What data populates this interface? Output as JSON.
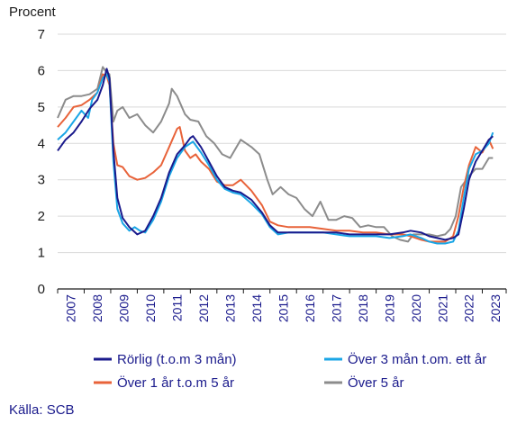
{
  "chart_data": {
    "type": "line",
    "ylabel": "Procent",
    "ylim": [
      0,
      7
    ],
    "yticks": [
      0,
      1,
      2,
      3,
      4,
      5,
      6,
      7
    ],
    "xlim": [
      2007.0,
      2023.9
    ],
    "xticks": [
      "2007",
      "2008",
      "2009",
      "2010",
      "2011",
      "2012",
      "2013",
      "2014",
      "2015",
      "2016",
      "2017",
      "2018",
      "2019",
      "2020",
      "2021",
      "2022",
      "2023"
    ],
    "grid": "horizontal",
    "legend_position": "bottom",
    "source": "Källa: SCB",
    "series": [
      {
        "name": "Rörlig (t.o.m 3 mån)",
        "color": "#1a1a8c",
        "points": [
          [
            2007.0,
            3.8
          ],
          [
            2007.3,
            4.1
          ],
          [
            2007.6,
            4.3
          ],
          [
            2007.9,
            4.6
          ],
          [
            2008.2,
            4.95
          ],
          [
            2008.5,
            5.2
          ],
          [
            2008.7,
            5.6
          ],
          [
            2008.85,
            6.05
          ],
          [
            2008.95,
            5.8
          ],
          [
            2009.1,
            3.8
          ],
          [
            2009.25,
            2.5
          ],
          [
            2009.45,
            1.95
          ],
          [
            2009.7,
            1.7
          ],
          [
            2010.0,
            1.5
          ],
          [
            2010.3,
            1.6
          ],
          [
            2010.6,
            2.0
          ],
          [
            2010.9,
            2.5
          ],
          [
            2011.2,
            3.2
          ],
          [
            2011.5,
            3.7
          ],
          [
            2011.8,
            3.95
          ],
          [
            2012.0,
            4.15
          ],
          [
            2012.1,
            4.2
          ],
          [
            2012.4,
            3.9
          ],
          [
            2012.7,
            3.5
          ],
          [
            2013.0,
            3.1
          ],
          [
            2013.3,
            2.8
          ],
          [
            2013.6,
            2.7
          ],
          [
            2013.9,
            2.65
          ],
          [
            2014.3,
            2.45
          ],
          [
            2014.7,
            2.1
          ],
          [
            2015.0,
            1.75
          ],
          [
            2015.3,
            1.55
          ],
          [
            2015.7,
            1.55
          ],
          [
            2016.0,
            1.55
          ],
          [
            2016.5,
            1.55
          ],
          [
            2017.0,
            1.55
          ],
          [
            2017.5,
            1.55
          ],
          [
            2018.0,
            1.5
          ],
          [
            2018.5,
            1.5
          ],
          [
            2019.0,
            1.5
          ],
          [
            2019.5,
            1.5
          ],
          [
            2020.0,
            1.55
          ],
          [
            2020.3,
            1.6
          ],
          [
            2020.7,
            1.55
          ],
          [
            2021.0,
            1.45
          ],
          [
            2021.3,
            1.4
          ],
          [
            2021.6,
            1.35
          ],
          [
            2021.9,
            1.4
          ],
          [
            2022.1,
            1.5
          ],
          [
            2022.3,
            2.2
          ],
          [
            2022.5,
            3.0
          ],
          [
            2022.75,
            3.5
          ],
          [
            2023.0,
            3.8
          ],
          [
            2023.25,
            4.1
          ],
          [
            2023.4,
            4.2
          ]
        ]
      },
      {
        "name": "Över 3 mån t.om. ett år",
        "color": "#1aa6e6",
        "points": [
          [
            2007.0,
            4.1
          ],
          [
            2007.3,
            4.3
          ],
          [
            2007.6,
            4.6
          ],
          [
            2007.9,
            4.9
          ],
          [
            2008.15,
            4.7
          ],
          [
            2008.3,
            5.2
          ],
          [
            2008.5,
            5.4
          ],
          [
            2008.7,
            5.8
          ],
          [
            2008.85,
            5.9
          ],
          [
            2008.95,
            5.7
          ],
          [
            2009.1,
            3.5
          ],
          [
            2009.25,
            2.2
          ],
          [
            2009.45,
            1.8
          ],
          [
            2009.7,
            1.6
          ],
          [
            2009.9,
            1.7
          ],
          [
            2010.1,
            1.6
          ],
          [
            2010.3,
            1.55
          ],
          [
            2010.6,
            1.9
          ],
          [
            2010.9,
            2.4
          ],
          [
            2011.2,
            3.1
          ],
          [
            2011.5,
            3.6
          ],
          [
            2011.8,
            3.9
          ],
          [
            2012.0,
            4.0
          ],
          [
            2012.1,
            4.05
          ],
          [
            2012.4,
            3.75
          ],
          [
            2012.7,
            3.4
          ],
          [
            2013.0,
            3.0
          ],
          [
            2013.3,
            2.75
          ],
          [
            2013.6,
            2.65
          ],
          [
            2013.9,
            2.6
          ],
          [
            2014.3,
            2.35
          ],
          [
            2014.7,
            2.05
          ],
          [
            2015.0,
            1.7
          ],
          [
            2015.3,
            1.5
          ],
          [
            2015.7,
            1.55
          ],
          [
            2016.0,
            1.55
          ],
          [
            2016.5,
            1.55
          ],
          [
            2017.0,
            1.55
          ],
          [
            2017.5,
            1.5
          ],
          [
            2018.0,
            1.45
          ],
          [
            2018.5,
            1.45
          ],
          [
            2019.0,
            1.45
          ],
          [
            2019.5,
            1.4
          ],
          [
            2020.0,
            1.45
          ],
          [
            2020.3,
            1.5
          ],
          [
            2020.7,
            1.4
          ],
          [
            2021.0,
            1.3
          ],
          [
            2021.3,
            1.25
          ],
          [
            2021.6,
            1.25
          ],
          [
            2021.9,
            1.3
          ],
          [
            2022.1,
            1.6
          ],
          [
            2022.3,
            2.5
          ],
          [
            2022.5,
            3.3
          ],
          [
            2022.75,
            3.7
          ],
          [
            2023.0,
            3.8
          ],
          [
            2023.25,
            4.0
          ],
          [
            2023.4,
            4.3
          ]
        ]
      },
      {
        "name": "Över 1 år t.o.m 5 år",
        "color": "#e8633a",
        "points": [
          [
            2007.0,
            4.45
          ],
          [
            2007.3,
            4.7
          ],
          [
            2007.6,
            5.0
          ],
          [
            2007.9,
            5.05
          ],
          [
            2008.2,
            5.2
          ],
          [
            2008.5,
            5.4
          ],
          [
            2008.7,
            5.9
          ],
          [
            2008.85,
            5.85
          ],
          [
            2008.95,
            5.6
          ],
          [
            2009.1,
            4.0
          ],
          [
            2009.25,
            3.4
          ],
          [
            2009.45,
            3.35
          ],
          [
            2009.7,
            3.1
          ],
          [
            2010.0,
            3.0
          ],
          [
            2010.3,
            3.05
          ],
          [
            2010.6,
            3.2
          ],
          [
            2010.9,
            3.4
          ],
          [
            2011.2,
            3.9
          ],
          [
            2011.5,
            4.4
          ],
          [
            2011.6,
            4.45
          ],
          [
            2011.8,
            3.8
          ],
          [
            2012.0,
            3.6
          ],
          [
            2012.2,
            3.7
          ],
          [
            2012.4,
            3.5
          ],
          [
            2012.7,
            3.3
          ],
          [
            2013.0,
            2.95
          ],
          [
            2013.3,
            2.85
          ],
          [
            2013.6,
            2.85
          ],
          [
            2013.9,
            3.0
          ],
          [
            2014.3,
            2.7
          ],
          [
            2014.7,
            2.3
          ],
          [
            2015.0,
            1.85
          ],
          [
            2015.3,
            1.75
          ],
          [
            2015.7,
            1.7
          ],
          [
            2016.0,
            1.7
          ],
          [
            2016.5,
            1.7
          ],
          [
            2017.0,
            1.65
          ],
          [
            2017.5,
            1.6
          ],
          [
            2018.0,
            1.6
          ],
          [
            2018.5,
            1.55
          ],
          [
            2019.0,
            1.55
          ],
          [
            2019.5,
            1.5
          ],
          [
            2020.0,
            1.5
          ],
          [
            2020.3,
            1.45
          ],
          [
            2020.7,
            1.35
          ],
          [
            2021.0,
            1.3
          ],
          [
            2021.3,
            1.3
          ],
          [
            2021.6,
            1.3
          ],
          [
            2021.9,
            1.45
          ],
          [
            2022.1,
            2.0
          ],
          [
            2022.3,
            2.8
          ],
          [
            2022.5,
            3.4
          ],
          [
            2022.75,
            3.9
          ],
          [
            2023.0,
            3.75
          ],
          [
            2023.25,
            4.1
          ],
          [
            2023.4,
            3.85
          ]
        ]
      },
      {
        "name": "Över 5 år",
        "color": "#8c8c8c",
        "points": [
          [
            2007.0,
            4.7
          ],
          [
            2007.3,
            5.2
          ],
          [
            2007.6,
            5.3
          ],
          [
            2007.9,
            5.3
          ],
          [
            2008.2,
            5.35
          ],
          [
            2008.5,
            5.5
          ],
          [
            2008.7,
            6.1
          ],
          [
            2008.85,
            5.95
          ],
          [
            2008.95,
            5.9
          ],
          [
            2009.1,
            4.6
          ],
          [
            2009.25,
            4.9
          ],
          [
            2009.45,
            5.0
          ],
          [
            2009.7,
            4.7
          ],
          [
            2010.0,
            4.8
          ],
          [
            2010.3,
            4.5
          ],
          [
            2010.6,
            4.3
          ],
          [
            2010.9,
            4.6
          ],
          [
            2011.2,
            5.1
          ],
          [
            2011.3,
            5.5
          ],
          [
            2011.5,
            5.3
          ],
          [
            2011.8,
            4.8
          ],
          [
            2012.0,
            4.65
          ],
          [
            2012.3,
            4.6
          ],
          [
            2012.6,
            4.2
          ],
          [
            2012.9,
            4.0
          ],
          [
            2013.2,
            3.7
          ],
          [
            2013.5,
            3.6
          ],
          [
            2013.9,
            4.1
          ],
          [
            2014.3,
            3.9
          ],
          [
            2014.6,
            3.7
          ],
          [
            2014.9,
            3.0
          ],
          [
            2015.1,
            2.6
          ],
          [
            2015.4,
            2.8
          ],
          [
            2015.7,
            2.6
          ],
          [
            2016.0,
            2.5
          ],
          [
            2016.3,
            2.2
          ],
          [
            2016.6,
            2.0
          ],
          [
            2016.9,
            2.4
          ],
          [
            2017.2,
            1.9
          ],
          [
            2017.5,
            1.9
          ],
          [
            2017.8,
            2.0
          ],
          [
            2018.1,
            1.95
          ],
          [
            2018.4,
            1.7
          ],
          [
            2018.7,
            1.75
          ],
          [
            2019.0,
            1.7
          ],
          [
            2019.3,
            1.7
          ],
          [
            2019.6,
            1.45
          ],
          [
            2019.9,
            1.35
          ],
          [
            2020.2,
            1.3
          ],
          [
            2020.4,
            1.5
          ],
          [
            2020.7,
            1.5
          ],
          [
            2021.0,
            1.5
          ],
          [
            2021.3,
            1.45
          ],
          [
            2021.6,
            1.5
          ],
          [
            2021.8,
            1.65
          ],
          [
            2022.0,
            2.0
          ],
          [
            2022.2,
            2.8
          ],
          [
            2022.5,
            3.1
          ],
          [
            2022.75,
            3.3
          ],
          [
            2023.0,
            3.3
          ],
          [
            2023.25,
            3.6
          ],
          [
            2023.4,
            3.6
          ]
        ]
      }
    ]
  }
}
